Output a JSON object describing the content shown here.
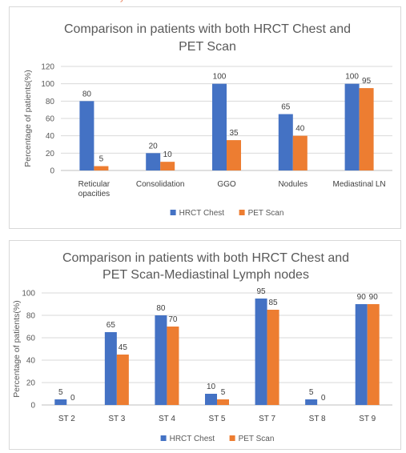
{
  "colors": {
    "hrct": "#4472c4",
    "pet": "#ed7d31",
    "grid": "#d9d9d9",
    "axis": "#bfbfbf"
  },
  "chart_data": [
    {
      "type": "bar",
      "title_lines": [
        "Comparison in patients with both HRCT Chest and",
        "PET Scan"
      ],
      "ylabel": "Percentage of patients(%)",
      "xlabel": "",
      "ylim": [
        0,
        120
      ],
      "yticks": [
        0,
        20,
        40,
        60,
        80,
        100,
        120
      ],
      "grid": true,
      "legend_position": "bottom",
      "categories": [
        [
          "Reticular",
          "opacities"
        ],
        [
          "Consolidation"
        ],
        [
          "GGO"
        ],
        [
          "Nodules"
        ],
        [
          "Mediastinal LN"
        ]
      ],
      "series": [
        {
          "name": "HRCT Chest",
          "values": [
            80,
            20,
            100,
            65,
            100
          ],
          "color_key": "hrct"
        },
        {
          "name": "PET Scan",
          "values": [
            5,
            10,
            35,
            40,
            95
          ],
          "color_key": "pet"
        }
      ]
    },
    {
      "type": "bar",
      "title_lines": [
        "Comparison in patients with both HRCT Chest and",
        "PET Scan-Mediastinal Lymph nodes"
      ],
      "ylabel": "Percentage of patients(%)",
      "xlabel": "",
      "ylim": [
        0,
        100
      ],
      "yticks": [
        0,
        20,
        40,
        60,
        80,
        100
      ],
      "grid": true,
      "legend_position": "bottom",
      "categories": [
        [
          "ST 2"
        ],
        [
          "ST 3"
        ],
        [
          "ST 4"
        ],
        [
          "ST 5"
        ],
        [
          "ST 7"
        ],
        [
          "ST 8"
        ],
        [
          "ST 9"
        ]
      ],
      "series": [
        {
          "name": "HRCT Chest",
          "values": [
            5,
            65,
            80,
            10,
            95,
            5,
            90
          ],
          "color_key": "hrct"
        },
        {
          "name": "PET Scan",
          "values": [
            0,
            45,
            70,
            5,
            85,
            0,
            90
          ],
          "color_key": "pet"
        }
      ]
    }
  ]
}
